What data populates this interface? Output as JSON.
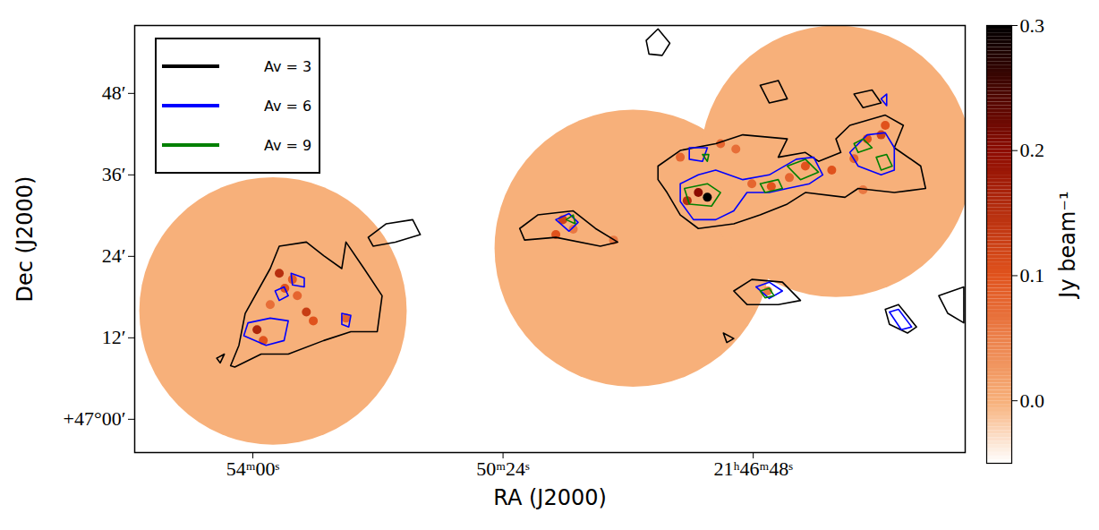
{
  "chart_data": {
    "type": "contour",
    "xlabel": "RA (J2000)",
    "ylabel": "Dec (J2000)",
    "xlim": [
      55.7,
      43.75
    ],
    "ylim": [
      -4.9,
      58
    ],
    "xticks": [
      {
        "value": 54.0,
        "label": "54ᵐ00ˢ"
      },
      {
        "value": 50.4,
        "label": "50ᵐ24ˢ"
      },
      {
        "value": 46.8,
        "label": "21ʰ46ᵐ48ˢ"
      }
    ],
    "yticks": [
      {
        "value": 0,
        "label": "+47°00′"
      },
      {
        "value": 12,
        "label": "12′"
      },
      {
        "value": 24,
        "label": "24′"
      },
      {
        "value": 36,
        "label": "36′"
      },
      {
        "value": 48,
        "label": "48′"
      }
    ],
    "legend": "upper left",
    "fields": {
      "x": [
        53.71,
        48.53,
        45.61
      ],
      "y": [
        15.96,
        25.2,
        38.0
      ],
      "radius": [
        19.7,
        20.4,
        20.0
      ]
    },
    "emission": {
      "x": [
        53.62,
        53.54,
        53.94,
        53.85,
        53.23,
        53.13,
        53.36,
        53.75,
        52.66,
        53.43,
        49.54,
        49.39,
        49.64,
        48.81,
        47.46,
        47.59,
        47.75,
        47.85,
        47.27,
        47.05,
        46.82,
        46.54,
        46.28,
        46.05,
        45.67,
        45.35,
        45.16,
        44.96,
        44.9,
        45.22,
        46.59
      ],
      "y": [
        21.5,
        19.3,
        13.2,
        11.6,
        15.8,
        14.5,
        18.2,
        16.9,
        14.9,
        20.6,
        29.4,
        28.0,
        27.2,
        26.4,
        32.7,
        33.4,
        32.2,
        38.6,
        40.6,
        39.8,
        34.7,
        34.3,
        35.6,
        37.3,
        36.7,
        38.4,
        41.3,
        41.9,
        43.3,
        33.8,
        18.9
      ],
      "values": [
        0.15,
        0.1,
        0.16,
        0.1,
        0.13,
        0.1,
        0.08,
        0.07,
        0.08,
        0.09,
        0.12,
        0.06,
        0.1,
        0.06,
        0.3,
        0.2,
        0.15,
        0.08,
        0.08,
        0.07,
        0.08,
        0.1,
        0.08,
        0.1,
        0.1,
        0.08,
        0.1,
        0.12,
        0.1,
        0.06,
        0.06
      ]
    },
    "colorbar": {
      "label": "Jy beam⁻¹",
      "lim": [
        -0.05,
        0.3
      ],
      "ticks": [
        {
          "value": 0,
          "label": "0.0"
        },
        0.1,
        0.2,
        0.3
      ]
    },
    "series": [
      {
        "name": "Av = 3",
        "color": "#000000",
        "contours": [
          [
            [
              54.32,
              7.9
            ],
            [
              54.2,
              10.9
            ],
            [
              54.11,
              15.6
            ],
            [
              53.75,
              22.2
            ],
            [
              53.62,
              25.5
            ],
            [
              53.23,
              26.1
            ],
            [
              52.98,
              24.1
            ],
            [
              52.72,
              22.2
            ],
            [
              52.66,
              26.1
            ],
            [
              52.4,
              22.2
            ],
            [
              52.14,
              18.2
            ],
            [
              52.21,
              12.9
            ],
            [
              52.59,
              12.9
            ],
            [
              52.98,
              11.6
            ],
            [
              53.49,
              9.6
            ],
            [
              53.88,
              9.6
            ],
            [
              54.26,
              7.7
            ]
          ],
          [
            [
              52.34,
              26.8
            ],
            [
              52.08,
              28.8
            ],
            [
              51.7,
              29.4
            ],
            [
              51.59,
              27.2
            ],
            [
              51.95,
              26.1
            ],
            [
              52.27,
              25.5
            ]
          ],
          [
            [
              50.16,
              28.1
            ],
            [
              49.9,
              30.1
            ],
            [
              49.39,
              30.7
            ],
            [
              49.07,
              28.1
            ],
            [
              48.75,
              26.1
            ],
            [
              49.0,
              25.5
            ],
            [
              49.64,
              26.8
            ],
            [
              50.09,
              26.4
            ]
          ],
          [
            [
              48.17,
              37.3
            ],
            [
              47.85,
              39.6
            ],
            [
              47.34,
              40.6
            ],
            [
              46.95,
              41.9
            ],
            [
              46.31,
              41.3
            ],
            [
              46.44,
              38.6
            ],
            [
              46.05,
              39.3
            ],
            [
              45.86,
              38.0
            ],
            [
              45.54,
              39.3
            ],
            [
              45.61,
              41.3
            ],
            [
              45.41,
              43.3
            ],
            [
              44.9,
              44.8
            ],
            [
              44.64,
              43.3
            ],
            [
              44.77,
              40.0
            ],
            [
              44.39,
              37.3
            ],
            [
              44.32,
              34.0
            ],
            [
              44.77,
              33.4
            ],
            [
              45.29,
              34.0
            ],
            [
              45.48,
              32.7
            ],
            [
              46.05,
              33.4
            ],
            [
              46.31,
              31.7
            ],
            [
              46.7,
              30.1
            ],
            [
              47.08,
              28.8
            ],
            [
              47.59,
              28.1
            ],
            [
              47.85,
              30.1
            ],
            [
              48.04,
              33.4
            ],
            [
              48.17,
              35.3
            ]
          ],
          [
            [
              47.08,
              18.9
            ],
            [
              46.82,
              20.6
            ],
            [
              46.38,
              20.2
            ],
            [
              46.12,
              17.5
            ],
            [
              46.44,
              16.9
            ],
            [
              46.89,
              16.9
            ]
          ],
          [
            [
              46.7,
              49.2
            ],
            [
              46.44,
              49.9
            ],
            [
              46.31,
              47.2
            ],
            [
              46.57,
              46.6
            ]
          ],
          [
            [
              45.35,
              47.9
            ],
            [
              45.09,
              48.5
            ],
            [
              44.96,
              46.6
            ],
            [
              45.22,
              45.9
            ]
          ],
          [
            [
              48.34,
              55.8
            ],
            [
              48.17,
              57.5
            ],
            [
              48.0,
              55.4
            ],
            [
              48.11,
              53.6
            ],
            [
              48.3,
              53.8
            ]
          ],
          [
            [
              44.9,
              16.2
            ],
            [
              44.71,
              16.9
            ],
            [
              44.45,
              13.6
            ],
            [
              44.58,
              12.7
            ],
            [
              44.84,
              14.0
            ]
          ],
          [
            [
              44.13,
              18.2
            ],
            [
              43.77,
              19.5
            ],
            [
              43.77,
              14.2
            ],
            [
              44.0,
              15.6
            ]
          ],
          [
            [
              47.23,
              12.7
            ],
            [
              47.08,
              11.9
            ],
            [
              47.18,
              11.3
            ]
          ],
          [
            [
              54.52,
              9.0
            ],
            [
              54.41,
              9.6
            ],
            [
              54.47,
              8.3
            ]
          ]
        ]
      },
      {
        "name": "Av = 6",
        "color": "#0000ff",
        "contours": [
          [
            [
              53.68,
              18.9
            ],
            [
              53.55,
              19.5
            ],
            [
              53.49,
              18.2
            ],
            [
              53.62,
              17.5
            ]
          ],
          [
            [
              54.07,
              14.2
            ],
            [
              53.75,
              14.9
            ],
            [
              53.49,
              14.5
            ],
            [
              53.55,
              11.6
            ],
            [
              53.81,
              10.9
            ],
            [
              54.13,
              12.3
            ]
          ],
          [
            [
              53.45,
              21.5
            ],
            [
              53.26,
              20.8
            ],
            [
              53.26,
              19.5
            ],
            [
              53.43,
              19.8
            ]
          ],
          [
            [
              52.72,
              15.6
            ],
            [
              52.59,
              15.3
            ],
            [
              52.62,
              13.6
            ],
            [
              52.72,
              14.0
            ]
          ],
          [
            [
              49.64,
              29.4
            ],
            [
              49.45,
              30.3
            ],
            [
              49.32,
              29.0
            ],
            [
              49.45,
              27.7
            ]
          ],
          [
            [
              47.85,
              34.7
            ],
            [
              47.59,
              36.0
            ],
            [
              47.34,
              36.7
            ],
            [
              46.95,
              35.3
            ],
            [
              46.57,
              36.0
            ],
            [
              46.18,
              38.3
            ],
            [
              45.93,
              38.6
            ],
            [
              45.8,
              36.0
            ],
            [
              45.99,
              34.7
            ],
            [
              46.31,
              34.0
            ],
            [
              46.57,
              33.4
            ],
            [
              46.89,
              33.4
            ],
            [
              47.08,
              30.7
            ],
            [
              47.34,
              29.4
            ],
            [
              47.66,
              29.4
            ],
            [
              47.85,
              32.1
            ]
          ],
          [
            [
              45.41,
              39.3
            ],
            [
              45.16,
              41.9
            ],
            [
              44.9,
              42.2
            ],
            [
              44.77,
              40.0
            ],
            [
              44.77,
              36.7
            ],
            [
              44.96,
              36.0
            ],
            [
              45.29,
              37.3
            ]
          ],
          [
            [
              47.72,
              40.0
            ],
            [
              47.46,
              40.0
            ],
            [
              47.53,
              38.0
            ],
            [
              47.72,
              38.3
            ]
          ],
          [
            [
              46.76,
              19.5
            ],
            [
              46.57,
              20.2
            ],
            [
              46.38,
              18.9
            ],
            [
              46.57,
              17.8
            ]
          ],
          [
            [
              44.84,
              15.8
            ],
            [
              44.71,
              16.2
            ],
            [
              44.52,
              13.6
            ],
            [
              44.67,
              13.2
            ]
          ],
          [
            [
              44.96,
              47.2
            ],
            [
              44.88,
              47.9
            ],
            [
              44.88,
              46.2
            ]
          ]
        ]
      },
      {
        "name": "Av = 9",
        "color": "#008000",
        "contours": [
          [
            [
              47.79,
              34.0
            ],
            [
              47.46,
              34.7
            ],
            [
              47.27,
              33.4
            ],
            [
              47.4,
              31.4
            ],
            [
              47.72,
              31.7
            ]
          ],
          [
            [
              46.7,
              34.7
            ],
            [
              46.44,
              35.3
            ],
            [
              46.38,
              34.0
            ],
            [
              46.63,
              33.4
            ]
          ],
          [
            [
              46.31,
              37.3
            ],
            [
              46.05,
              38.3
            ],
            [
              45.86,
              36.4
            ],
            [
              46.12,
              35.3
            ]
          ],
          [
            [
              45.35,
              40.6
            ],
            [
              45.22,
              41.3
            ],
            [
              45.09,
              40.0
            ],
            [
              45.29,
              39.3
            ]
          ],
          [
            [
              45.03,
              38.6
            ],
            [
              44.88,
              39.0
            ],
            [
              44.8,
              37.3
            ],
            [
              44.96,
              36.7
            ]
          ],
          [
            [
              49.49,
              29.4
            ],
            [
              49.39,
              30.1
            ],
            [
              49.36,
              28.8
            ]
          ],
          [
            [
              46.7,
              18.9
            ],
            [
              46.57,
              19.3
            ],
            [
              46.5,
              18.2
            ],
            [
              46.63,
              17.9
            ]
          ],
          [
            [
              47.53,
              39.0
            ],
            [
              47.44,
              39.0
            ],
            [
              47.46,
              38.0
            ]
          ]
        ]
      }
    ]
  }
}
